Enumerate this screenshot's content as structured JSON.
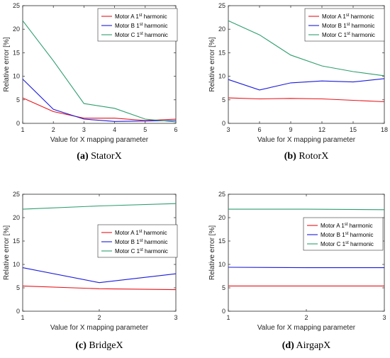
{
  "colors": {
    "motor_a": "#e8141b",
    "motor_b": "#1b1bdc",
    "motor_c": "#2e9e6e",
    "axis": "#262626",
    "grid": "#e6e6e6"
  },
  "chart_data": [
    {
      "type": "line",
      "caption_tag": "(a)",
      "caption_text": "StatorX",
      "xlabel": "Value for X mapping parameter",
      "ylabel": "Relative error [%]",
      "x": [
        1,
        2,
        3,
        4,
        5,
        6
      ],
      "xticks": [
        "1",
        "2",
        "3",
        "4",
        "5",
        "6"
      ],
      "xlim": [
        1,
        6
      ],
      "ylim": [
        0,
        25
      ],
      "yticks": [
        "0",
        "5",
        "10",
        "15",
        "20",
        "25"
      ],
      "legend_position": "top-right",
      "series": [
        {
          "name": "Motor A 1st harmonic",
          "values": [
            5.4,
            2.5,
            1.1,
            1.1,
            0.6,
            0.9
          ]
        },
        {
          "name": "Motor B 1st harmonic",
          "values": [
            9.4,
            3.0,
            0.9,
            0.4,
            0.5,
            0.6
          ]
        },
        {
          "name": "Motor C 1st harmonic",
          "values": [
            21.8,
            13.3,
            4.2,
            3.2,
            0.9,
            0.3
          ]
        }
      ]
    },
    {
      "type": "line",
      "caption_tag": "(b)",
      "caption_text": "RotorX",
      "xlabel": "Value for X mapping parameter",
      "ylabel": "Relative error [%]",
      "x": [
        3,
        6,
        9,
        12,
        15,
        18
      ],
      "xticks": [
        "3",
        "6",
        "9",
        "12",
        "15",
        "18"
      ],
      "xlim": [
        3,
        18
      ],
      "ylim": [
        0,
        25
      ],
      "yticks": [
        "0",
        "5",
        "10",
        "15",
        "20",
        "25"
      ],
      "legend_position": "top-right",
      "series": [
        {
          "name": "Motor A 1st harmonic",
          "values": [
            5.4,
            5.2,
            5.3,
            5.2,
            4.9,
            4.6
          ]
        },
        {
          "name": "Motor B 1st harmonic",
          "values": [
            9.3,
            7.1,
            8.6,
            9.0,
            8.8,
            9.5
          ]
        },
        {
          "name": "Motor C 1st harmonic",
          "values": [
            21.8,
            18.8,
            14.5,
            12.2,
            11.0,
            10.1
          ]
        }
      ]
    },
    {
      "type": "line",
      "caption_tag": "(c)",
      "caption_text": "BridgeX",
      "xlabel": "Value for X mapping parameter",
      "ylabel": "Relative error [%]",
      "x": [
        1,
        2,
        3
      ],
      "xticks": [
        "1",
        "2",
        "3"
      ],
      "xlim": [
        1,
        3
      ],
      "ylim": [
        0,
        25
      ],
      "yticks": [
        "0",
        "5",
        "10",
        "15",
        "20",
        "25"
      ],
      "legend_position": "right",
      "series": [
        {
          "name": "Motor A 1st harmonic",
          "values": [
            5.4,
            4.8,
            4.6
          ]
        },
        {
          "name": "Motor B 1st harmonic",
          "values": [
            9.3,
            6.1,
            8.0
          ]
        },
        {
          "name": "Motor C 1st harmonic",
          "values": [
            21.8,
            22.5,
            23.0
          ]
        }
      ]
    },
    {
      "type": "line",
      "caption_tag": "(d)",
      "caption_text": "AirgapX",
      "xlabel": "Value for X mapping parameter",
      "ylabel": "Relative error [%]",
      "x": [
        1,
        2,
        3
      ],
      "xticks": [
        "1",
        "2",
        "3"
      ],
      "xlim": [
        1,
        3
      ],
      "ylim": [
        0,
        25
      ],
      "yticks": [
        "0",
        "5",
        "10",
        "15",
        "20",
        "25"
      ],
      "legend_position": "right",
      "series": [
        {
          "name": "Motor A 1st harmonic",
          "values": [
            5.4,
            5.4,
            5.4
          ]
        },
        {
          "name": "Motor B 1st harmonic",
          "values": [
            9.4,
            9.3,
            9.3
          ]
        },
        {
          "name": "Motor C 1st harmonic",
          "values": [
            21.8,
            21.8,
            21.7
          ]
        }
      ]
    }
  ]
}
